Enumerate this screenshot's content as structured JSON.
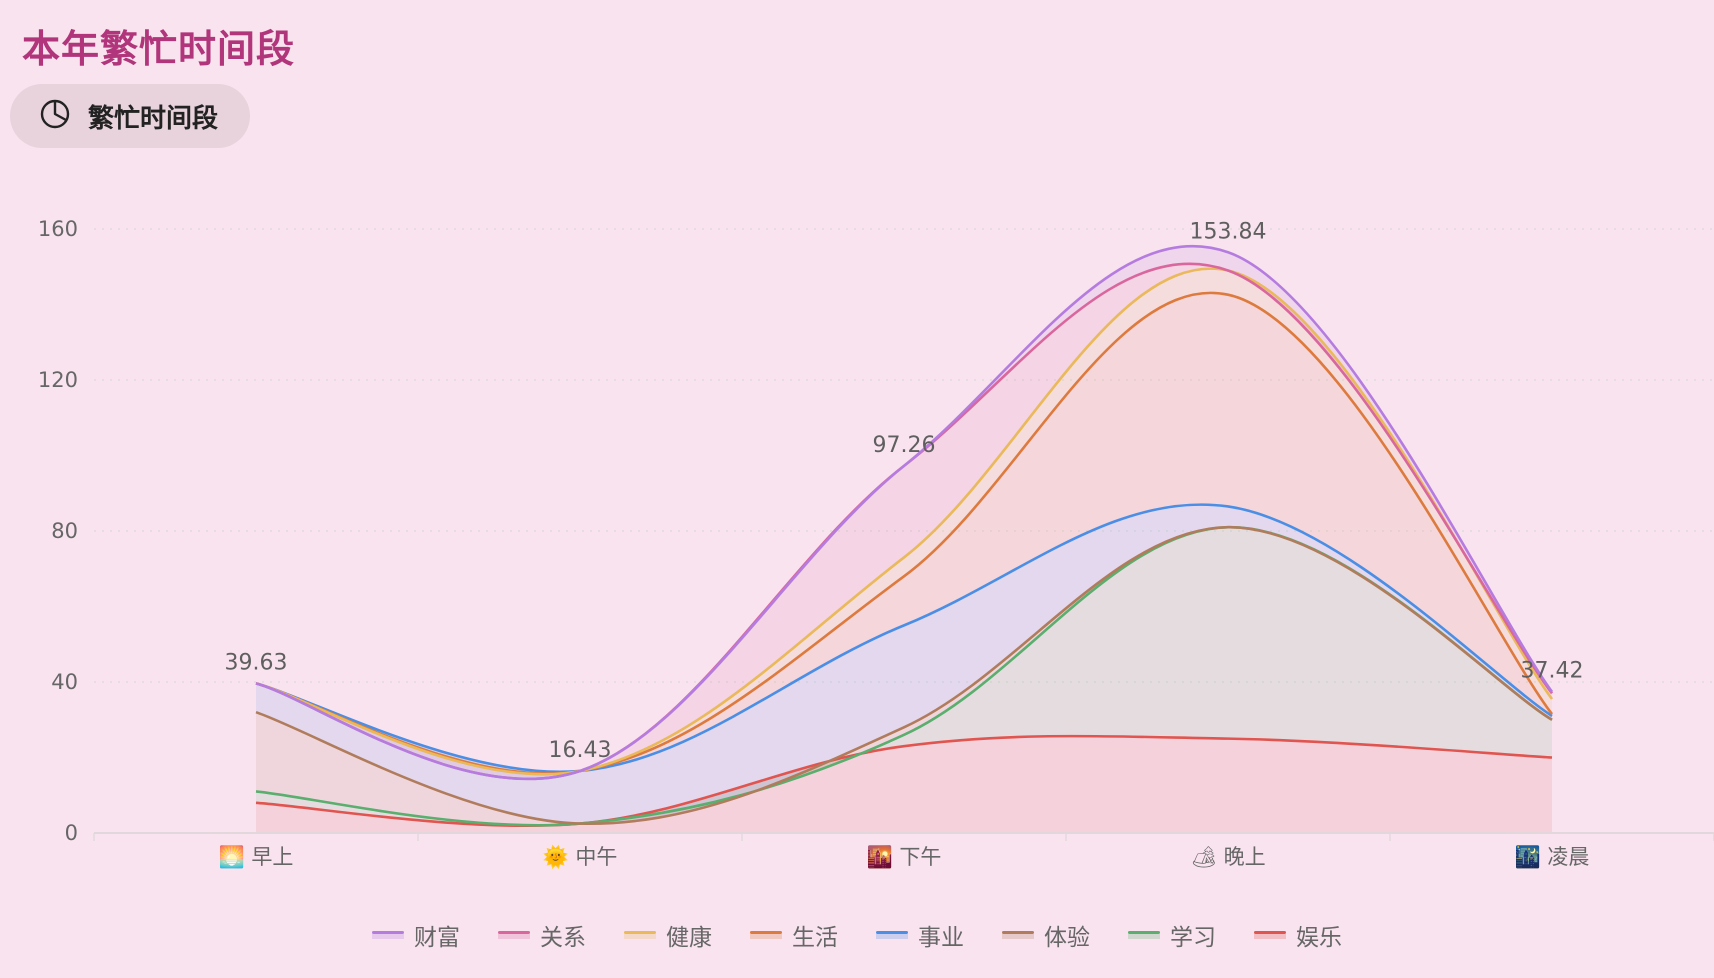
{
  "page": {
    "title": "本年繁忙时间段",
    "pill_label": "繁忙时间段",
    "pill_icon": "pie-chart-icon"
  },
  "colors": {
    "background": "#f9e3ef",
    "title": "#b0357a",
    "pill_bg": "#e8d2dc"
  },
  "chart_data": {
    "type": "area",
    "stacked": true,
    "smooth": true,
    "title": "",
    "xlabel": "",
    "ylabel": "",
    "ylim": [
      0,
      160
    ],
    "yticks": [
      0,
      40,
      80,
      120,
      160
    ],
    "grid": "horizontal dotted",
    "legend_position": "bottom",
    "categories": [
      "早上",
      "中午",
      "下午",
      "晚上",
      "凌晨"
    ],
    "category_icons": [
      "🌅",
      "🌞",
      "🌇",
      "🏕",
      "🌃"
    ],
    "stack_order_bottom_to_top": [
      "娱乐",
      "学习",
      "体验",
      "事业",
      "生活",
      "健康",
      "关系",
      "财富"
    ],
    "series": [
      {
        "name": "财富",
        "color": "#b57ce0",
        "values": [
          0,
          0,
          0,
          4.84,
          0.42
        ]
      },
      {
        "name": "关系",
        "color": "#d9679e",
        "values": [
          0,
          0,
          24.26,
          0,
          1.5
        ]
      },
      {
        "name": "健康",
        "color": "#e9b95a",
        "values": [
          0,
          0,
          5,
          6.4,
          4
        ]
      },
      {
        "name": "生活",
        "color": "#dd7a3e",
        "values": [
          0,
          0,
          13,
          56.1,
          0.5
        ]
      },
      {
        "name": "事业",
        "color": "#4b8ee6",
        "values": [
          7.63,
          13.93,
          27,
          5.5,
          1
        ]
      },
      {
        "name": "体验",
        "color": "#b07c5c",
        "values": [
          21,
          0,
          2,
          0,
          0
        ]
      },
      {
        "name": "学习",
        "color": "#5aae6e",
        "values": [
          3,
          0,
          3,
          56,
          10
        ]
      },
      {
        "name": "娱乐",
        "color": "#e0554f",
        "values": [
          8,
          2.5,
          23,
          25,
          20
        ]
      }
    ],
    "total_labels": [
      "39.63",
      "16.43",
      "97.26",
      "153.84",
      "37.42"
    ],
    "totals": [
      39.63,
      16.43,
      97.26,
      153.84,
      37.42
    ]
  }
}
